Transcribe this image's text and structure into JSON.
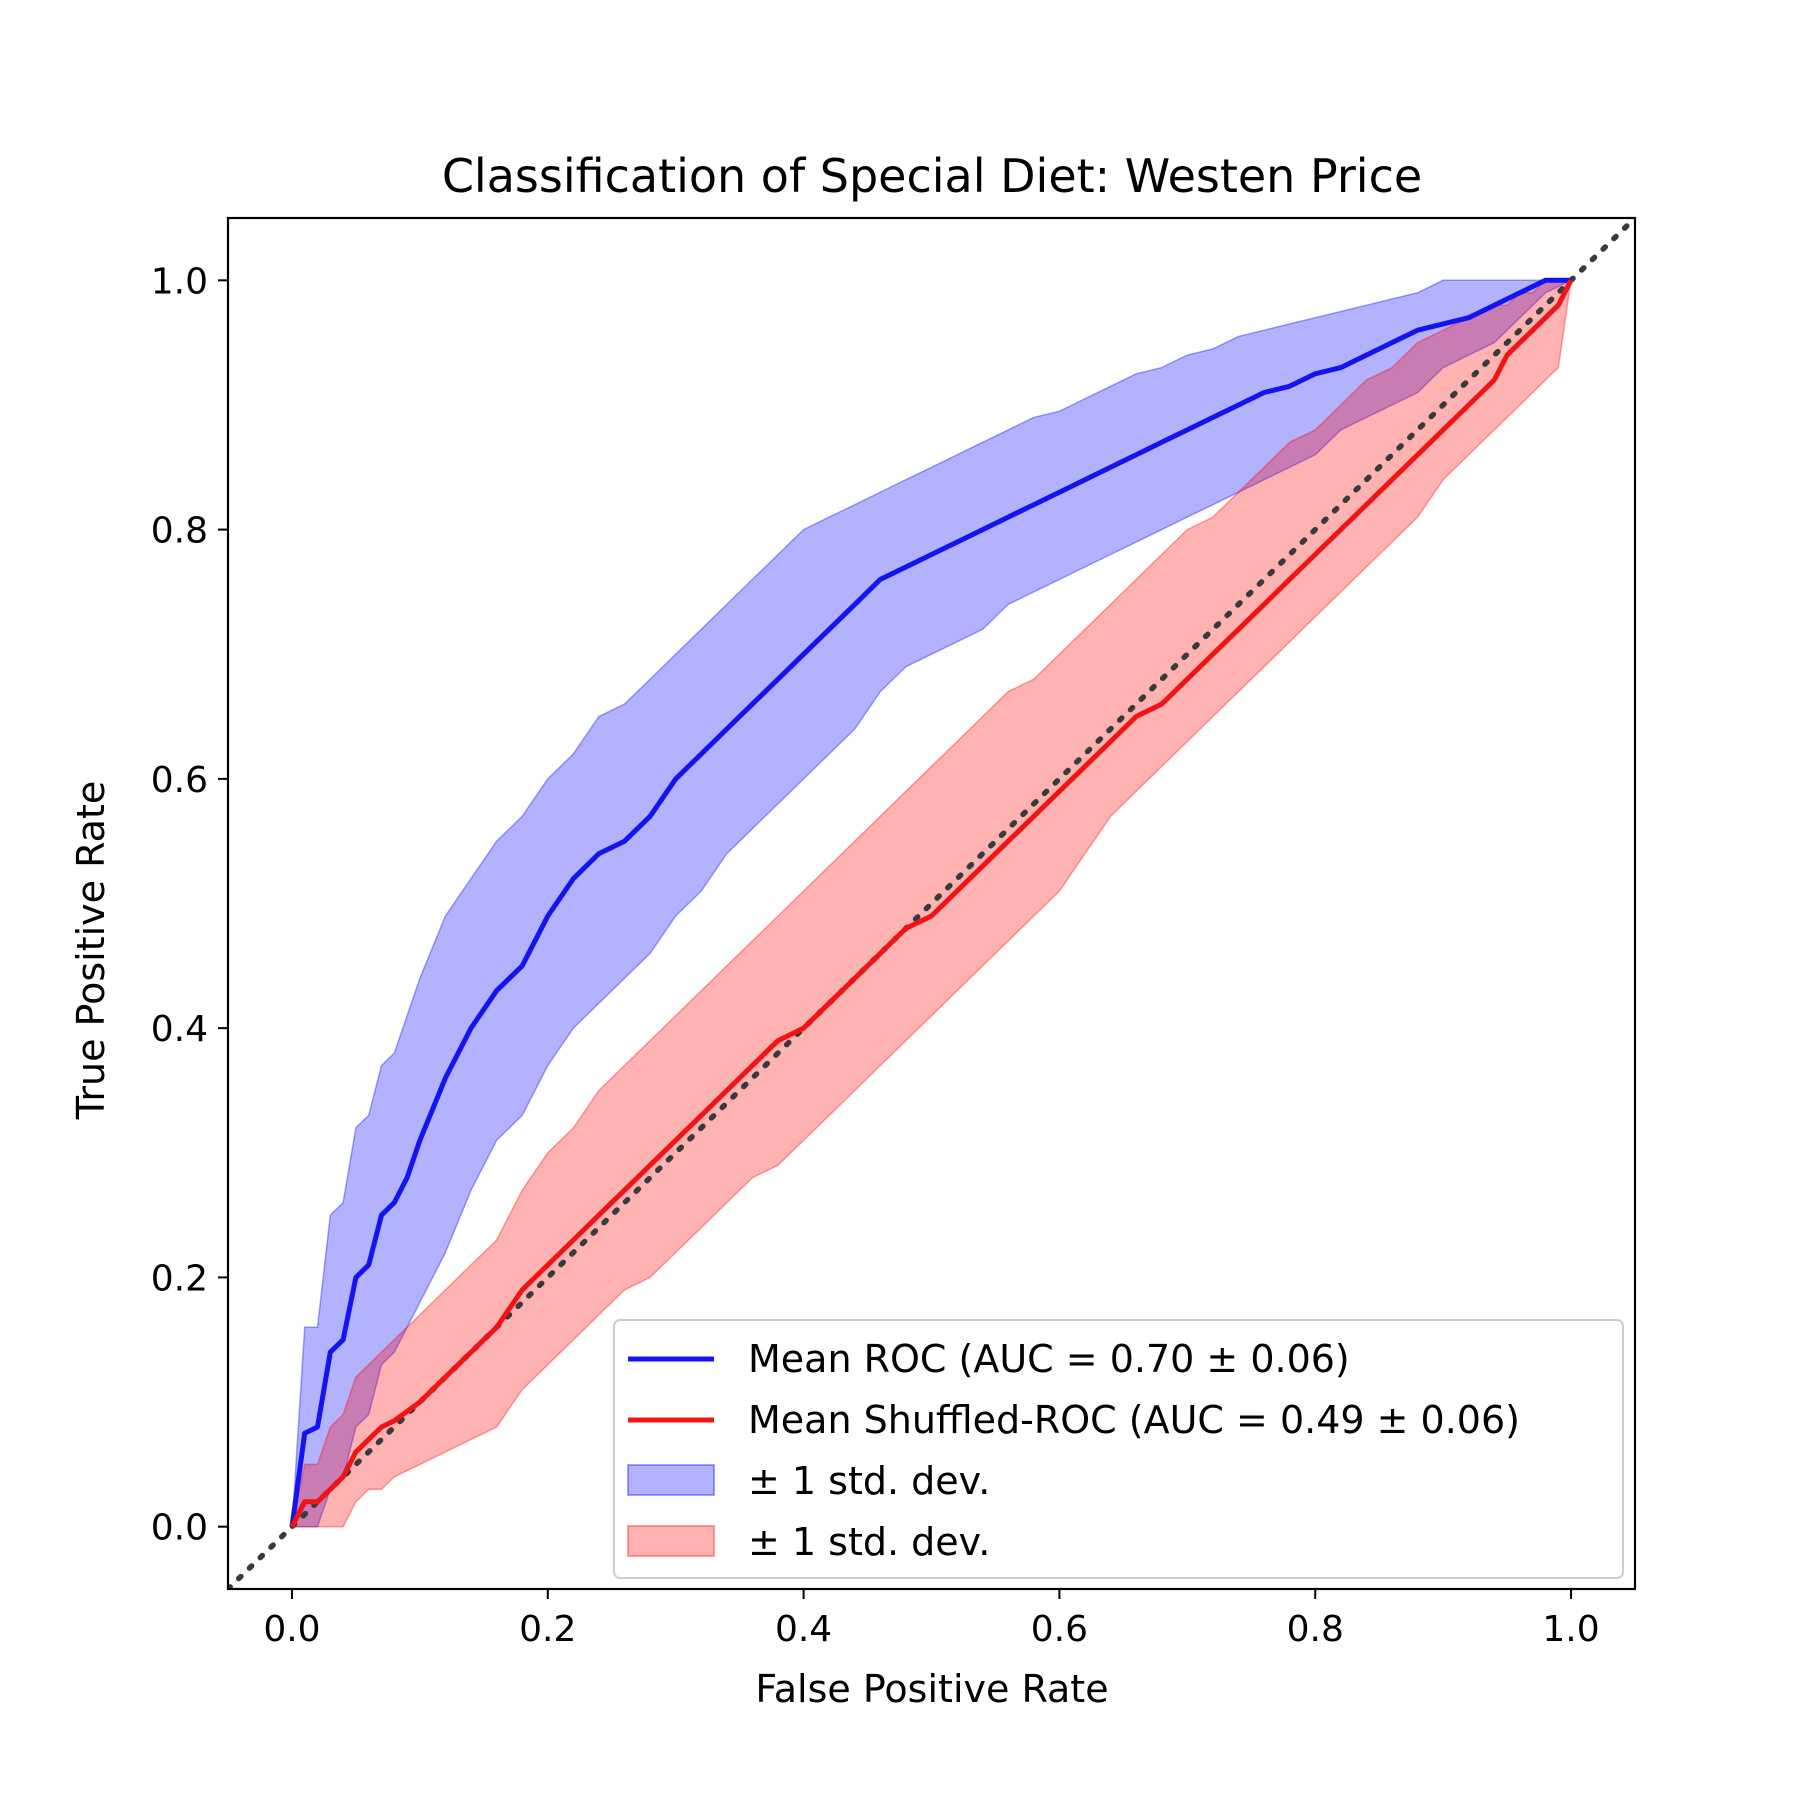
{
  "chart_data": {
    "type": "line",
    "title": "Classification of Special Diet: Westen Price",
    "xlabel": "False Positive Rate",
    "ylabel": "True Positive Rate",
    "xlim": [
      -0.05,
      1.05
    ],
    "ylim": [
      -0.05,
      1.05
    ],
    "x_ticks": [
      "0.0",
      "0.2",
      "0.4",
      "0.6",
      "0.8",
      "1.0"
    ],
    "y_ticks": [
      "0.0",
      "0.2",
      "0.4",
      "0.6",
      "0.8",
      "1.0"
    ],
    "grid": false,
    "legend_position": "lower-right",
    "diagonal": {
      "style": "dotted",
      "color": "#3a3a3a",
      "x": [
        -0.05,
        1.05
      ],
      "y": [
        -0.05,
        1.05
      ]
    },
    "series": [
      {
        "name": "Mean ROC (AUC = 0.70 ± 0.06)",
        "color": "#1414f0",
        "x": [
          0.0,
          0.01,
          0.02,
          0.03,
          0.04,
          0.05,
          0.06,
          0.07,
          0.08,
          0.09,
          0.1,
          0.12,
          0.14,
          0.16,
          0.18,
          0.2,
          0.22,
          0.24,
          0.26,
          0.28,
          0.3,
          0.32,
          0.34,
          0.36,
          0.38,
          0.4,
          0.42,
          0.44,
          0.46,
          0.48,
          0.5,
          0.52,
          0.54,
          0.56,
          0.58,
          0.6,
          0.62,
          0.64,
          0.66,
          0.68,
          0.7,
          0.72,
          0.74,
          0.76,
          0.78,
          0.8,
          0.82,
          0.84,
          0.86,
          0.88,
          0.9,
          0.92,
          0.94,
          0.96,
          0.98,
          1.0
        ],
        "y": [
          0.0,
          0.075,
          0.08,
          0.14,
          0.15,
          0.2,
          0.21,
          0.25,
          0.26,
          0.28,
          0.31,
          0.36,
          0.4,
          0.43,
          0.45,
          0.49,
          0.52,
          0.54,
          0.55,
          0.57,
          0.6,
          0.62,
          0.64,
          0.66,
          0.68,
          0.7,
          0.72,
          0.74,
          0.76,
          0.77,
          0.78,
          0.79,
          0.8,
          0.81,
          0.82,
          0.83,
          0.84,
          0.85,
          0.86,
          0.87,
          0.88,
          0.89,
          0.9,
          0.91,
          0.915,
          0.925,
          0.93,
          0.94,
          0.95,
          0.96,
          0.965,
          0.97,
          0.98,
          0.99,
          1.0,
          1.0
        ],
        "band_upper": [
          0.0,
          0.16,
          0.16,
          0.25,
          0.26,
          0.32,
          0.33,
          0.37,
          0.38,
          0.41,
          0.44,
          0.49,
          0.52,
          0.55,
          0.57,
          0.6,
          0.62,
          0.65,
          0.66,
          0.68,
          0.7,
          0.72,
          0.74,
          0.76,
          0.78,
          0.8,
          0.81,
          0.82,
          0.83,
          0.84,
          0.85,
          0.86,
          0.87,
          0.88,
          0.89,
          0.895,
          0.905,
          0.915,
          0.925,
          0.93,
          0.94,
          0.945,
          0.955,
          0.96,
          0.965,
          0.97,
          0.975,
          0.98,
          0.985,
          0.99,
          1.0,
          1.0,
          1.0,
          1.0,
          1.0,
          1.0
        ],
        "band_lower": [
          0.0,
          0.0,
          0.0,
          0.03,
          0.04,
          0.08,
          0.09,
          0.13,
          0.14,
          0.16,
          0.18,
          0.22,
          0.27,
          0.31,
          0.33,
          0.37,
          0.4,
          0.42,
          0.44,
          0.46,
          0.49,
          0.51,
          0.54,
          0.56,
          0.58,
          0.6,
          0.62,
          0.64,
          0.67,
          0.69,
          0.7,
          0.71,
          0.72,
          0.74,
          0.75,
          0.76,
          0.77,
          0.78,
          0.79,
          0.8,
          0.81,
          0.82,
          0.83,
          0.84,
          0.85,
          0.86,
          0.88,
          0.89,
          0.9,
          0.91,
          0.93,
          0.94,
          0.95,
          0.97,
          0.99,
          1.0
        ]
      },
      {
        "name": "Mean Shuffled-ROC (AUC = 0.49 ± 0.06)",
        "color": "#f01414",
        "x": [
          0.0,
          0.01,
          0.02,
          0.03,
          0.04,
          0.05,
          0.06,
          0.07,
          0.08,
          0.1,
          0.12,
          0.14,
          0.16,
          0.18,
          0.2,
          0.22,
          0.24,
          0.26,
          0.28,
          0.3,
          0.32,
          0.34,
          0.36,
          0.38,
          0.4,
          0.42,
          0.44,
          0.46,
          0.48,
          0.5,
          0.52,
          0.54,
          0.56,
          0.58,
          0.6,
          0.62,
          0.64,
          0.66,
          0.68,
          0.7,
          0.72,
          0.74,
          0.76,
          0.78,
          0.8,
          0.82,
          0.84,
          0.86,
          0.88,
          0.9,
          0.92,
          0.94,
          0.95,
          0.96,
          0.97,
          0.98,
          0.99,
          1.0
        ],
        "y": [
          0.0,
          0.02,
          0.02,
          0.03,
          0.04,
          0.06,
          0.07,
          0.08,
          0.085,
          0.1,
          0.12,
          0.14,
          0.16,
          0.19,
          0.21,
          0.23,
          0.25,
          0.27,
          0.29,
          0.31,
          0.33,
          0.35,
          0.37,
          0.39,
          0.4,
          0.42,
          0.44,
          0.46,
          0.48,
          0.49,
          0.51,
          0.53,
          0.55,
          0.57,
          0.59,
          0.61,
          0.63,
          0.65,
          0.66,
          0.68,
          0.7,
          0.72,
          0.74,
          0.76,
          0.78,
          0.8,
          0.82,
          0.84,
          0.86,
          0.88,
          0.9,
          0.92,
          0.94,
          0.95,
          0.96,
          0.97,
          0.98,
          1.0
        ],
        "band_upper": [
          0.0,
          0.05,
          0.05,
          0.08,
          0.09,
          0.12,
          0.13,
          0.14,
          0.15,
          0.17,
          0.19,
          0.21,
          0.23,
          0.27,
          0.3,
          0.32,
          0.35,
          0.37,
          0.39,
          0.41,
          0.43,
          0.45,
          0.47,
          0.49,
          0.51,
          0.53,
          0.55,
          0.57,
          0.59,
          0.61,
          0.63,
          0.65,
          0.67,
          0.68,
          0.7,
          0.72,
          0.74,
          0.76,
          0.78,
          0.8,
          0.81,
          0.83,
          0.85,
          0.87,
          0.88,
          0.9,
          0.92,
          0.93,
          0.95,
          0.96,
          0.97,
          0.98,
          0.98,
          0.99,
          0.99,
          1.0,
          1.0,
          1.0
        ],
        "band_lower": [
          0.0,
          0.0,
          0.0,
          0.0,
          0.0,
          0.02,
          0.03,
          0.03,
          0.04,
          0.05,
          0.06,
          0.07,
          0.08,
          0.11,
          0.13,
          0.15,
          0.17,
          0.19,
          0.2,
          0.22,
          0.24,
          0.26,
          0.28,
          0.29,
          0.31,
          0.33,
          0.35,
          0.37,
          0.39,
          0.41,
          0.43,
          0.45,
          0.47,
          0.49,
          0.51,
          0.54,
          0.57,
          0.59,
          0.61,
          0.63,
          0.65,
          0.67,
          0.69,
          0.71,
          0.73,
          0.75,
          0.77,
          0.79,
          0.81,
          0.84,
          0.86,
          0.88,
          0.89,
          0.9,
          0.91,
          0.92,
          0.93,
          1.0
        ]
      }
    ],
    "legend": [
      {
        "label": "Mean ROC (AUC = 0.70 ± 0.06)",
        "kind": "line",
        "color": "#1414f0"
      },
      {
        "label": "Mean Shuffled-ROC (AUC = 0.49 ± 0.06)",
        "kind": "line",
        "color": "#f01414"
      },
      {
        "label": "± 1 std. dev.",
        "kind": "band",
        "color": "#0000ff"
      },
      {
        "label": "± 1 std. dev.",
        "kind": "band",
        "color": "#ff0000"
      }
    ]
  }
}
